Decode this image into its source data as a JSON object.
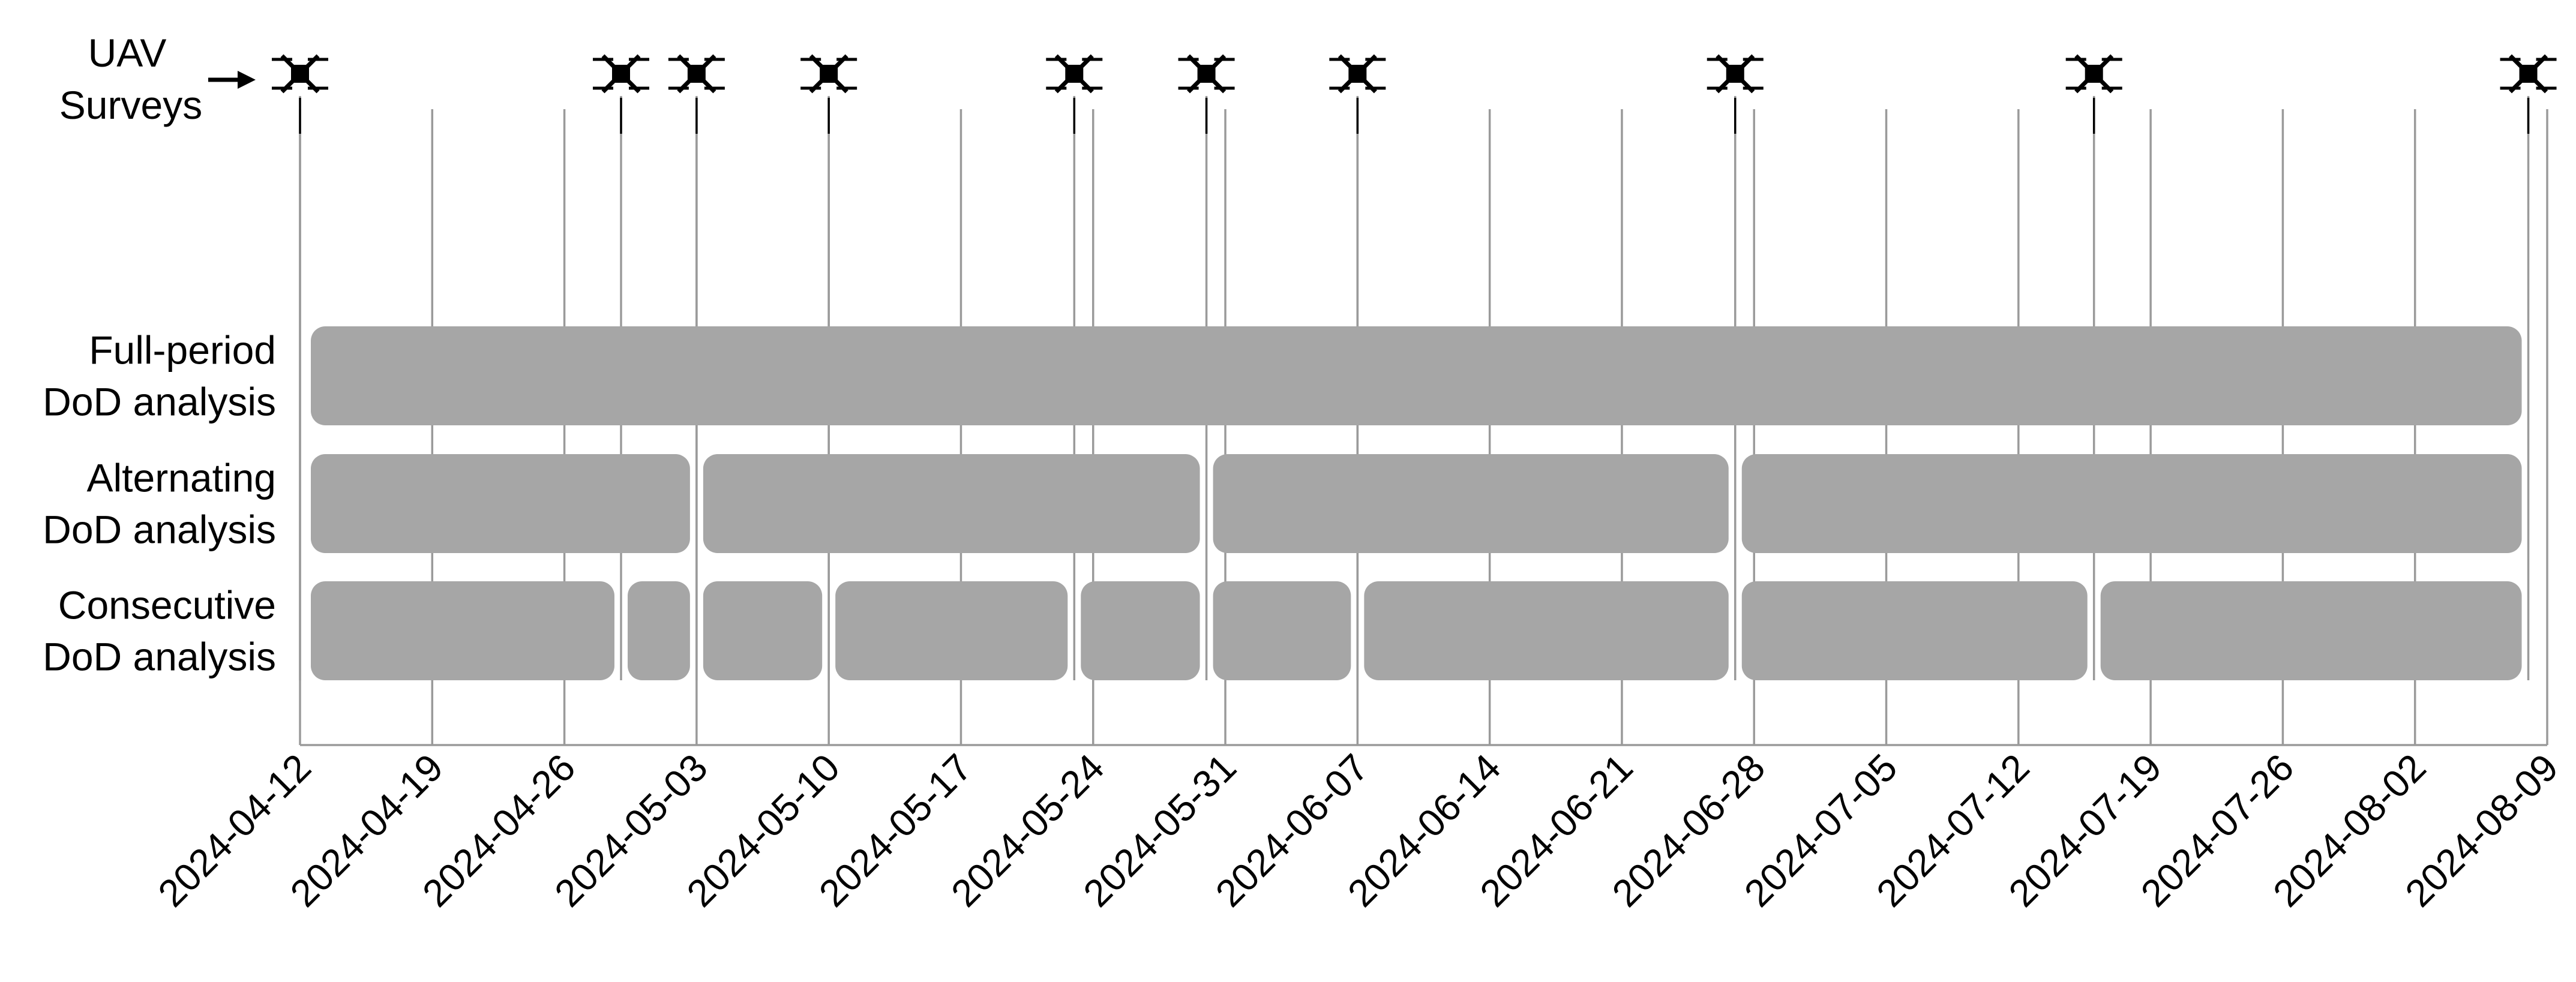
{
  "chart_data": {
    "type": "timeline",
    "uav_label": [
      "UAV",
      "Surveys"
    ],
    "x_axis": {
      "type": "date",
      "range": [
        "2024-04-12",
        "2024-08-09"
      ],
      "tick_labels": [
        "2024-04-12",
        "2024-04-19",
        "2024-04-26",
        "2024-05-03",
        "2024-05-10",
        "2024-05-17",
        "2024-05-24",
        "2024-05-31",
        "2024-06-07",
        "2024-06-14",
        "2024-06-21",
        "2024-06-28",
        "2024-07-05",
        "2024-07-12",
        "2024-07-19",
        "2024-07-26",
        "2024-08-02",
        "2024-08-09"
      ],
      "tick_label_rotation": "45 degrees",
      "vertical_gridlines": true
    },
    "uav_survey_dates": [
      "2024-04-12",
      "2024-04-29",
      "2024-05-03",
      "2024-05-10",
      "2024-05-23",
      "2024-05-30",
      "2024-06-07",
      "2024-06-27",
      "2024-07-16",
      "2024-08-08"
    ],
    "bar_color": "#a6a6a6",
    "rows": [
      {
        "label": [
          "Full-period",
          "DoD analysis"
        ],
        "intervals": [
          [
            "2024-04-12",
            "2024-08-08"
          ]
        ]
      },
      {
        "label": [
          "Alternating",
          "DoD analysis"
        ],
        "intervals": [
          [
            "2024-04-12",
            "2024-05-03"
          ],
          [
            "2024-05-03",
            "2024-05-30"
          ],
          [
            "2024-05-30",
            "2024-06-27"
          ],
          [
            "2024-06-27",
            "2024-08-08"
          ]
        ]
      },
      {
        "label": [
          "Consecutive",
          "DoD analysis"
        ],
        "intervals": [
          [
            "2024-04-12",
            "2024-04-29"
          ],
          [
            "2024-04-29",
            "2024-05-03"
          ],
          [
            "2024-05-03",
            "2024-05-10"
          ],
          [
            "2024-05-10",
            "2024-05-23"
          ],
          [
            "2024-05-23",
            "2024-05-30"
          ],
          [
            "2024-05-30",
            "2024-06-07"
          ],
          [
            "2024-06-07",
            "2024-06-27"
          ],
          [
            "2024-06-27",
            "2024-07-16"
          ],
          [
            "2024-07-16",
            "2024-08-08"
          ]
        ]
      }
    ]
  }
}
